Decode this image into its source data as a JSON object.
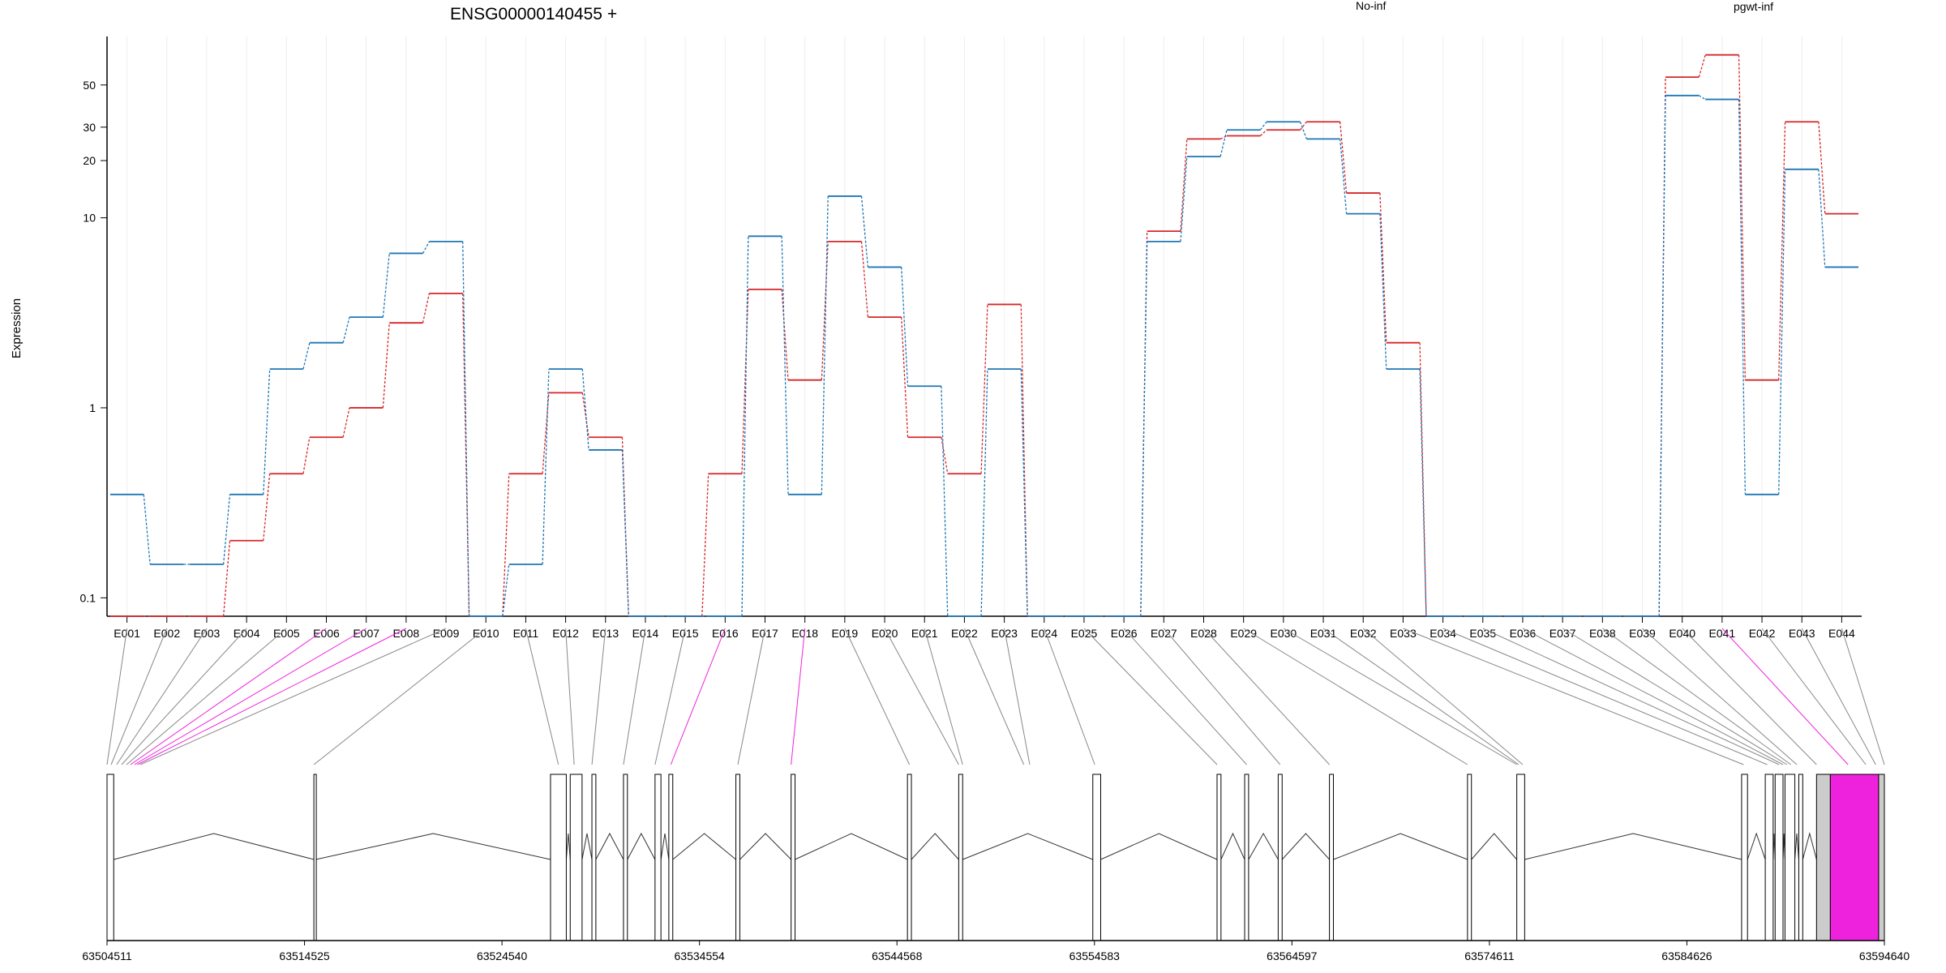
{
  "chart_data": {
    "type": "line",
    "title": "ENSG00000140455 +",
    "ylabel": "Expression",
    "yscale": "log",
    "ylim": [
      0.08,
      90
    ],
    "yticks": [
      "0.1",
      "1",
      "10",
      "20",
      "30",
      "50"
    ],
    "grid": true,
    "legend_position": "top-right",
    "categories": [
      "E001",
      "E002",
      "E003",
      "E004",
      "E005",
      "E006",
      "E007",
      "E008",
      "E009",
      "E010",
      "E011",
      "E012",
      "E013",
      "E014",
      "E015",
      "E016",
      "E017",
      "E018",
      "E019",
      "E020",
      "E021",
      "E022",
      "E023",
      "E024",
      "E025",
      "E026",
      "E027",
      "E028",
      "E029",
      "E030",
      "E031",
      "E032",
      "E033",
      "E034",
      "E035",
      "E036",
      "E037",
      "E038",
      "E039",
      "E040",
      "E041",
      "E042",
      "E043",
      "E044"
    ],
    "series": [
      {
        "name": "No-inf",
        "color": "#d62728",
        "values": [
          0.08,
          0.08,
          0.08,
          0.2,
          0.45,
          0.7,
          1.0,
          2.8,
          4.0,
          0.08,
          0.45,
          1.2,
          0.7,
          0.08,
          0.08,
          0.45,
          4.2,
          1.4,
          7.5,
          3.0,
          0.7,
          0.45,
          3.5,
          0.08,
          0.08,
          0.08,
          8.5,
          26,
          27,
          29,
          32,
          13.5,
          2.2,
          0.08,
          0.08,
          0.08,
          0.08,
          0.08,
          0.08,
          55,
          72,
          1.4,
          32,
          10.5
        ]
      },
      {
        "name": "pgwt-inf",
        "color": "#1f77b4",
        "values": [
          0.35,
          0.15,
          0.15,
          0.35,
          1.6,
          2.2,
          3.0,
          6.5,
          7.5,
          0.08,
          0.15,
          1.6,
          0.6,
          0.08,
          0.08,
          0.08,
          8.0,
          0.35,
          13,
          5.5,
          1.3,
          0.08,
          1.6,
          0.08,
          0.08,
          0.08,
          7.5,
          21,
          29,
          32,
          26,
          10.5,
          1.6,
          0.08,
          0.08,
          0.08,
          0.08,
          0.08,
          0.08,
          44,
          42,
          0.35,
          18,
          5.5
        ]
      }
    ],
    "gene_track": {
      "genomic_range": [
        63504511,
        63594640
      ],
      "tick_labels": [
        "63504511",
        "63514525",
        "63524540",
        "63534554",
        "63544568",
        "63554583",
        "63564597",
        "63574611",
        "63584626",
        "63594640"
      ],
      "highlight_color": "#ee22dd",
      "exon_fill": "#ffffff",
      "grey_fill": "#cccccc",
      "highlighted_bins": [
        5,
        6,
        7,
        15,
        17,
        40
      ]
    }
  }
}
